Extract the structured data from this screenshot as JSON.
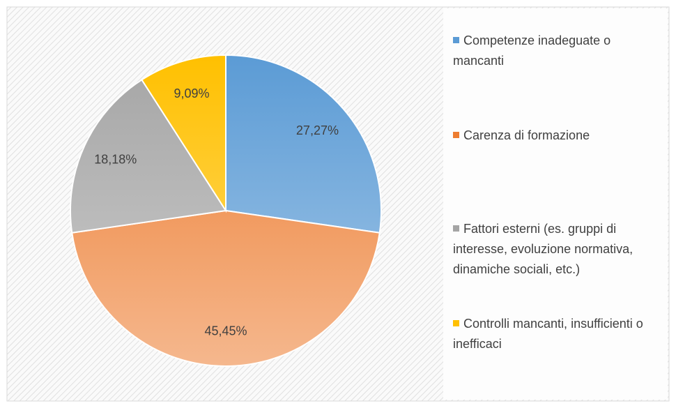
{
  "chart_data": {
    "type": "pie",
    "categories": [
      "Competenze inadeguate o mancanti",
      "Carenza di formazione",
      "Fattori esterni  (es. gruppi di interesse, evoluzione normativa, dinamiche sociali, etc.)",
      "Controlli mancanti, insufficienti o inefficaci"
    ],
    "values": [
      27.27,
      45.45,
      18.18,
      9.09
    ],
    "value_labels": [
      "27,27%",
      "45,45%",
      "18,18%",
      "9,09%"
    ],
    "colors": [
      "#5b9bd5",
      "#ed7d31",
      "#a5a5a5",
      "#ffc000"
    ],
    "legend": "right"
  }
}
